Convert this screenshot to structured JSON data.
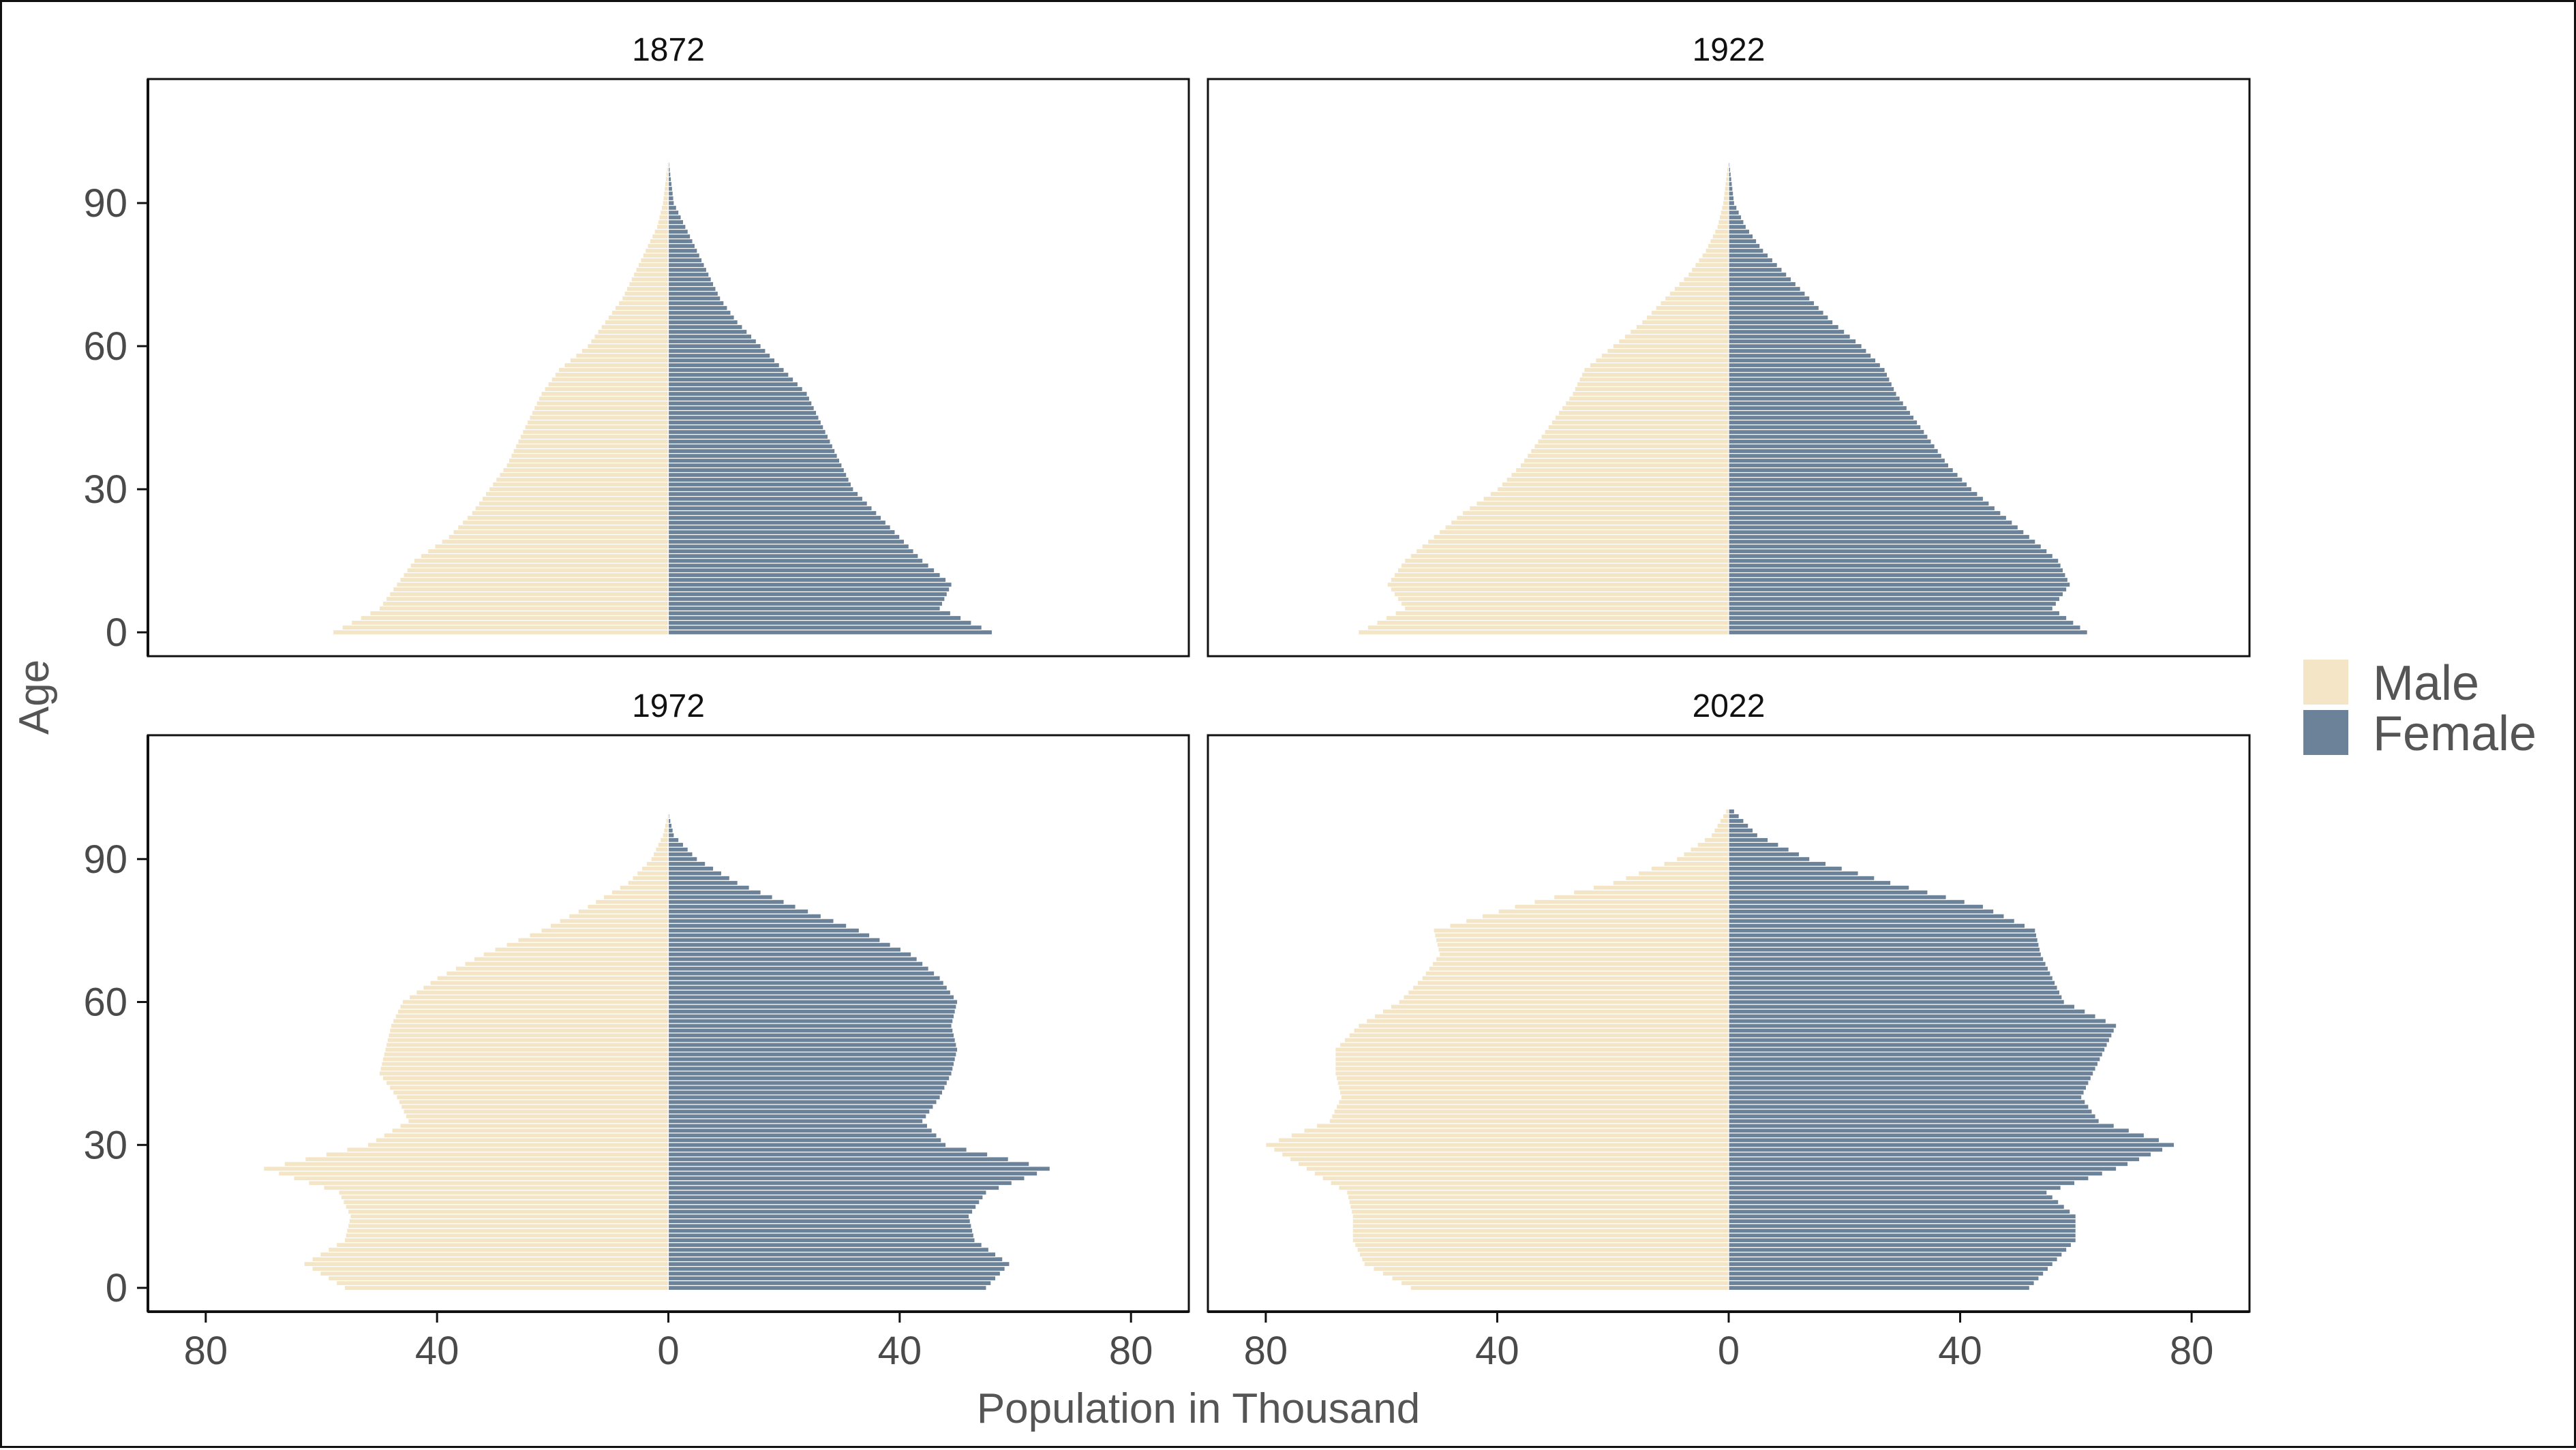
{
  "chart_data": {
    "type": "bar",
    "subtype": "population-pyramid",
    "xlabel": "Population in Thousand",
    "ylabel": "Age",
    "x_ticks": [
      "80",
      "40",
      "0",
      "40",
      "80"
    ],
    "x_tick_values": [
      -80,
      -40,
      0,
      40,
      80
    ],
    "xlim": [
      -90,
      90
    ],
    "y_ticks": [
      0,
      30,
      60,
      90
    ],
    "ylim": [
      -5,
      116
    ],
    "legend": {
      "position": "right",
      "items": [
        {
          "name": "Male",
          "color": "#f3e5c6"
        },
        {
          "name": "Female",
          "color": "#6b8299"
        }
      ]
    },
    "colors": {
      "male": "#f3e5c6",
      "female": "#6b8299",
      "bar_edge": "#ffffff"
    },
    "layout": "2x2 facets",
    "panels": [
      {
        "title": "1872",
        "ages": [
          0,
          5,
          10,
          15,
          20,
          25,
          30,
          35,
          40,
          45,
          50,
          55,
          60,
          65,
          70,
          75,
          80,
          85,
          90,
          95,
          100
        ],
        "male": [
          58,
          50,
          47,
          44,
          38,
          34,
          31,
          28,
          26,
          24,
          22,
          19,
          14,
          11,
          8,
          6,
          4,
          2,
          1,
          0.5,
          0
        ],
        "female": [
          56,
          47,
          49,
          44,
          40,
          36,
          32,
          30,
          28,
          26,
          24,
          20,
          16,
          12,
          9,
          7,
          5,
          3,
          1,
          0.5,
          0
        ]
      },
      {
        "title": "1922",
        "ages": [
          0,
          5,
          10,
          15,
          20,
          25,
          30,
          35,
          40,
          45,
          50,
          55,
          60,
          65,
          70,
          75,
          80,
          85,
          90,
          95,
          100
        ],
        "male": [
          64,
          56,
          59,
          56,
          51,
          46,
          40,
          36,
          33,
          30,
          27,
          25,
          20,
          15,
          11,
          7,
          4,
          2,
          1,
          0.5,
          0
        ],
        "female": [
          62,
          56,
          59,
          57,
          52,
          47,
          42,
          38,
          35,
          32,
          29,
          27,
          23,
          18,
          14,
          10,
          6,
          3,
          1,
          0.5,
          0
        ]
      },
      {
        "title": "1972",
        "ages": [
          0,
          5,
          10,
          15,
          20,
          25,
          30,
          35,
          40,
          45,
          50,
          55,
          60,
          65,
          70,
          75,
          80,
          85,
          90,
          95,
          100
        ],
        "male": [
          56,
          63,
          56,
          55,
          57,
          70,
          52,
          45,
          47,
          50,
          49,
          48,
          46,
          40,
          32,
          22,
          14,
          7,
          3,
          1,
          0
        ],
        "female": [
          55,
          59,
          53,
          52,
          55,
          66,
          48,
          44,
          47,
          49,
          50,
          49,
          50,
          47,
          42,
          33,
          22,
          12,
          5,
          1,
          0
        ]
      },
      {
        "title": "2022",
        "ages": [
          0,
          5,
          10,
          15,
          20,
          25,
          30,
          35,
          40,
          45,
          50,
          55,
          60,
          65,
          70,
          75,
          80,
          85,
          90,
          95,
          100
        ],
        "male": [
          55,
          63,
          65,
          65,
          66,
          73,
          80,
          69,
          67,
          68,
          68,
          64,
          57,
          53,
          50,
          51,
          37,
          20,
          9,
          3,
          0.5
        ],
        "female": [
          52,
          56,
          60,
          60,
          55,
          67,
          77,
          64,
          61,
          63,
          65,
          67,
          58,
          56,
          54,
          53,
          44,
          28,
          14,
          5,
          1
        ]
      }
    ]
  }
}
